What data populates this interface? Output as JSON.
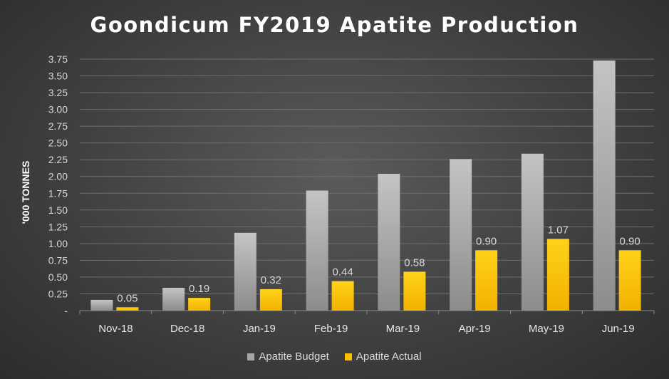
{
  "chart_data": {
    "type": "bar",
    "title": "Goondicum FY2019 Apatite Production",
    "xlabel": "",
    "ylabel": "'000 TONNES",
    "ylim": [
      0,
      3.75
    ],
    "yticks": [
      "-",
      "0.25",
      "0.50",
      "0.75",
      "1.00",
      "1.25",
      "1.50",
      "1.75",
      "2.00",
      "2.25",
      "2.50",
      "2.75",
      "3.00",
      "3.25",
      "3.50",
      "3.75"
    ],
    "categories": [
      "Nov-18",
      "Dec-18",
      "Jan-19",
      "Feb-19",
      "Mar-19",
      "Apr-19",
      "May-19",
      "Jun-19"
    ],
    "series": [
      {
        "name": "Apatite Budget",
        "color": "#a6a6a6",
        "values": [
          0.16,
          0.34,
          1.16,
          1.79,
          2.04,
          2.26,
          2.34,
          3.73
        ],
        "show_labels": false
      },
      {
        "name": "Apatite Actual",
        "color": "#ffc000",
        "values": [
          0.05,
          0.19,
          0.32,
          0.44,
          0.58,
          0.9,
          1.07,
          0.9
        ],
        "labels": [
          "0.05",
          "0.19",
          "0.32",
          "0.44",
          "0.58",
          "0.90",
          "1.07",
          "0.90"
        ],
        "show_labels": true
      }
    ],
    "grid": true,
    "legend_position": "bottom"
  }
}
